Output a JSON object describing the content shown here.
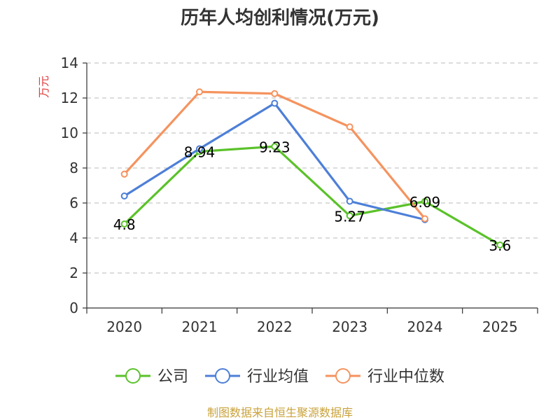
{
  "chart_data": {
    "type": "line",
    "title": "历年人均创利情况(万元)",
    "ylabel": "万元",
    "xlabel": "",
    "categories": [
      "2020",
      "2021",
      "2022",
      "2023",
      "2024",
      "2025"
    ],
    "ylim": [
      0,
      14
    ],
    "yticks": [
      0,
      2,
      4,
      6,
      8,
      10,
      12,
      14
    ],
    "grid": true,
    "legend_position": "bottom",
    "series": [
      {
        "name": "公司",
        "color": "#5ac229",
        "values": [
          4.8,
          8.94,
          9.23,
          5.27,
          6.09,
          3.6
        ],
        "data_labels": [
          "4.8",
          "8.94",
          "9.23",
          "5.27",
          "6.09",
          "3.6"
        ]
      },
      {
        "name": "行业均值",
        "color": "#4d7fd8",
        "values": [
          6.4,
          9.1,
          11.7,
          6.1,
          5.05,
          null
        ]
      },
      {
        "name": "行业中位数",
        "color": "#f5935e",
        "values": [
          7.65,
          12.35,
          12.25,
          10.35,
          5.1,
          null
        ]
      }
    ],
    "source": "制图数据来自恒生聚源数据库"
  },
  "colors": {
    "axis": "#333333",
    "grid": "#c8c8c8",
    "unit": "#e03c3c",
    "source": "#c9a23a"
  }
}
